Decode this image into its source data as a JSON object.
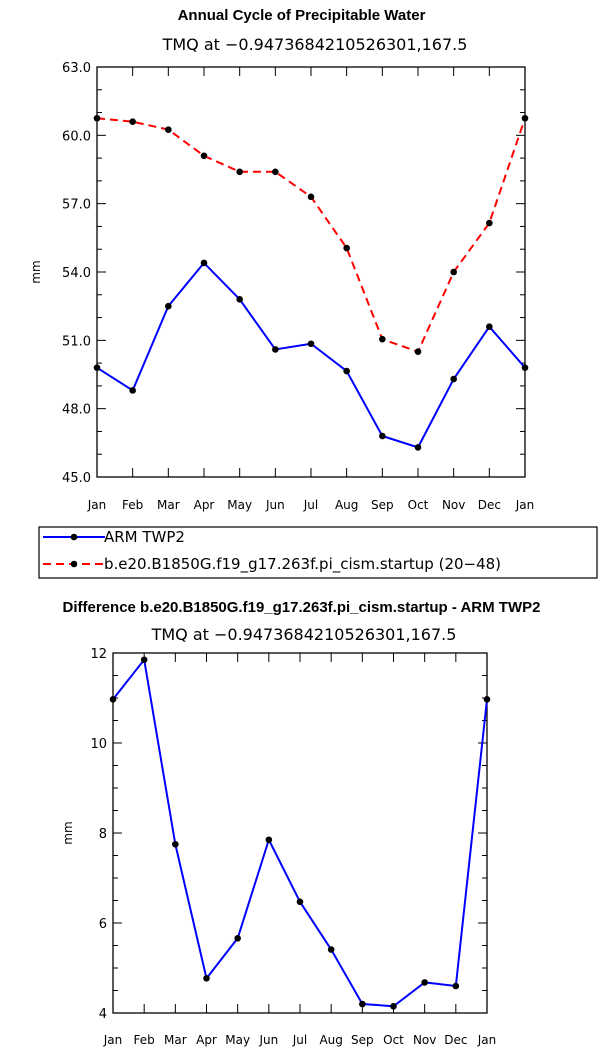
{
  "chart_data": [
    {
      "type": "line",
      "title": "Annual Cycle of Precipitable Water",
      "subtitle": "TMQ at −0.9473684210526301,167.5",
      "xlabel": "",
      "ylabel": "mm",
      "categories": [
        "Jan",
        "Feb",
        "Mar",
        "Apr",
        "May",
        "Jun",
        "Jul",
        "Aug",
        "Sep",
        "Oct",
        "Nov",
        "Dec",
        "Jan"
      ],
      "ylim": [
        45.0,
        63.0
      ],
      "yticks": [
        "45.0",
        "48.0",
        "51.0",
        "54.0",
        "57.0",
        "60.0",
        "63.0"
      ],
      "ytick_values": [
        45,
        48,
        51,
        54,
        57,
        60,
        63
      ],
      "series": [
        {
          "name": "ARM TWP2",
          "color": "#0000ff",
          "dash": "solid",
          "values": [
            49.8,
            48.8,
            52.5,
            54.4,
            52.8,
            50.6,
            50.85,
            49.65,
            46.8,
            46.3,
            49.3,
            51.6,
            49.8
          ]
        },
        {
          "name": "b.e20.B1850G.f19_g17.263f.pi_cism.startup (20−48)",
          "color": "#ff0000",
          "dash": "dashed",
          "values": [
            60.75,
            60.6,
            60.25,
            59.1,
            58.4,
            58.4,
            57.3,
            55.05,
            51.05,
            50.5,
            54.0,
            56.15,
            60.75
          ]
        }
      ],
      "legend": "below"
    },
    {
      "type": "line",
      "title": "Difference b.e20.B1850G.f19_g17.263f.pi_cism.startup - ARM TWP2",
      "subtitle": "TMQ at −0.9473684210526301,167.5",
      "xlabel": "",
      "ylabel": "mm",
      "categories": [
        "Jan",
        "Feb",
        "Mar",
        "Apr",
        "May",
        "Jun",
        "Jul",
        "Aug",
        "Sep",
        "Oct",
        "Nov",
        "Dec",
        "Jan"
      ],
      "ylim": [
        4,
        12
      ],
      "yticks": [
        "4",
        "6",
        "8",
        "10",
        "12"
      ],
      "ytick_values": [
        4,
        6,
        8,
        10,
        12
      ],
      "series": [
        {
          "name": "Difference",
          "color": "#0000ff",
          "dash": "solid",
          "values": [
            10.97,
            11.85,
            7.75,
            4.77,
            5.66,
            7.85,
            6.47,
            5.41,
            4.2,
            4.15,
            4.68,
            4.6,
            10.97
          ]
        }
      ]
    }
  ]
}
